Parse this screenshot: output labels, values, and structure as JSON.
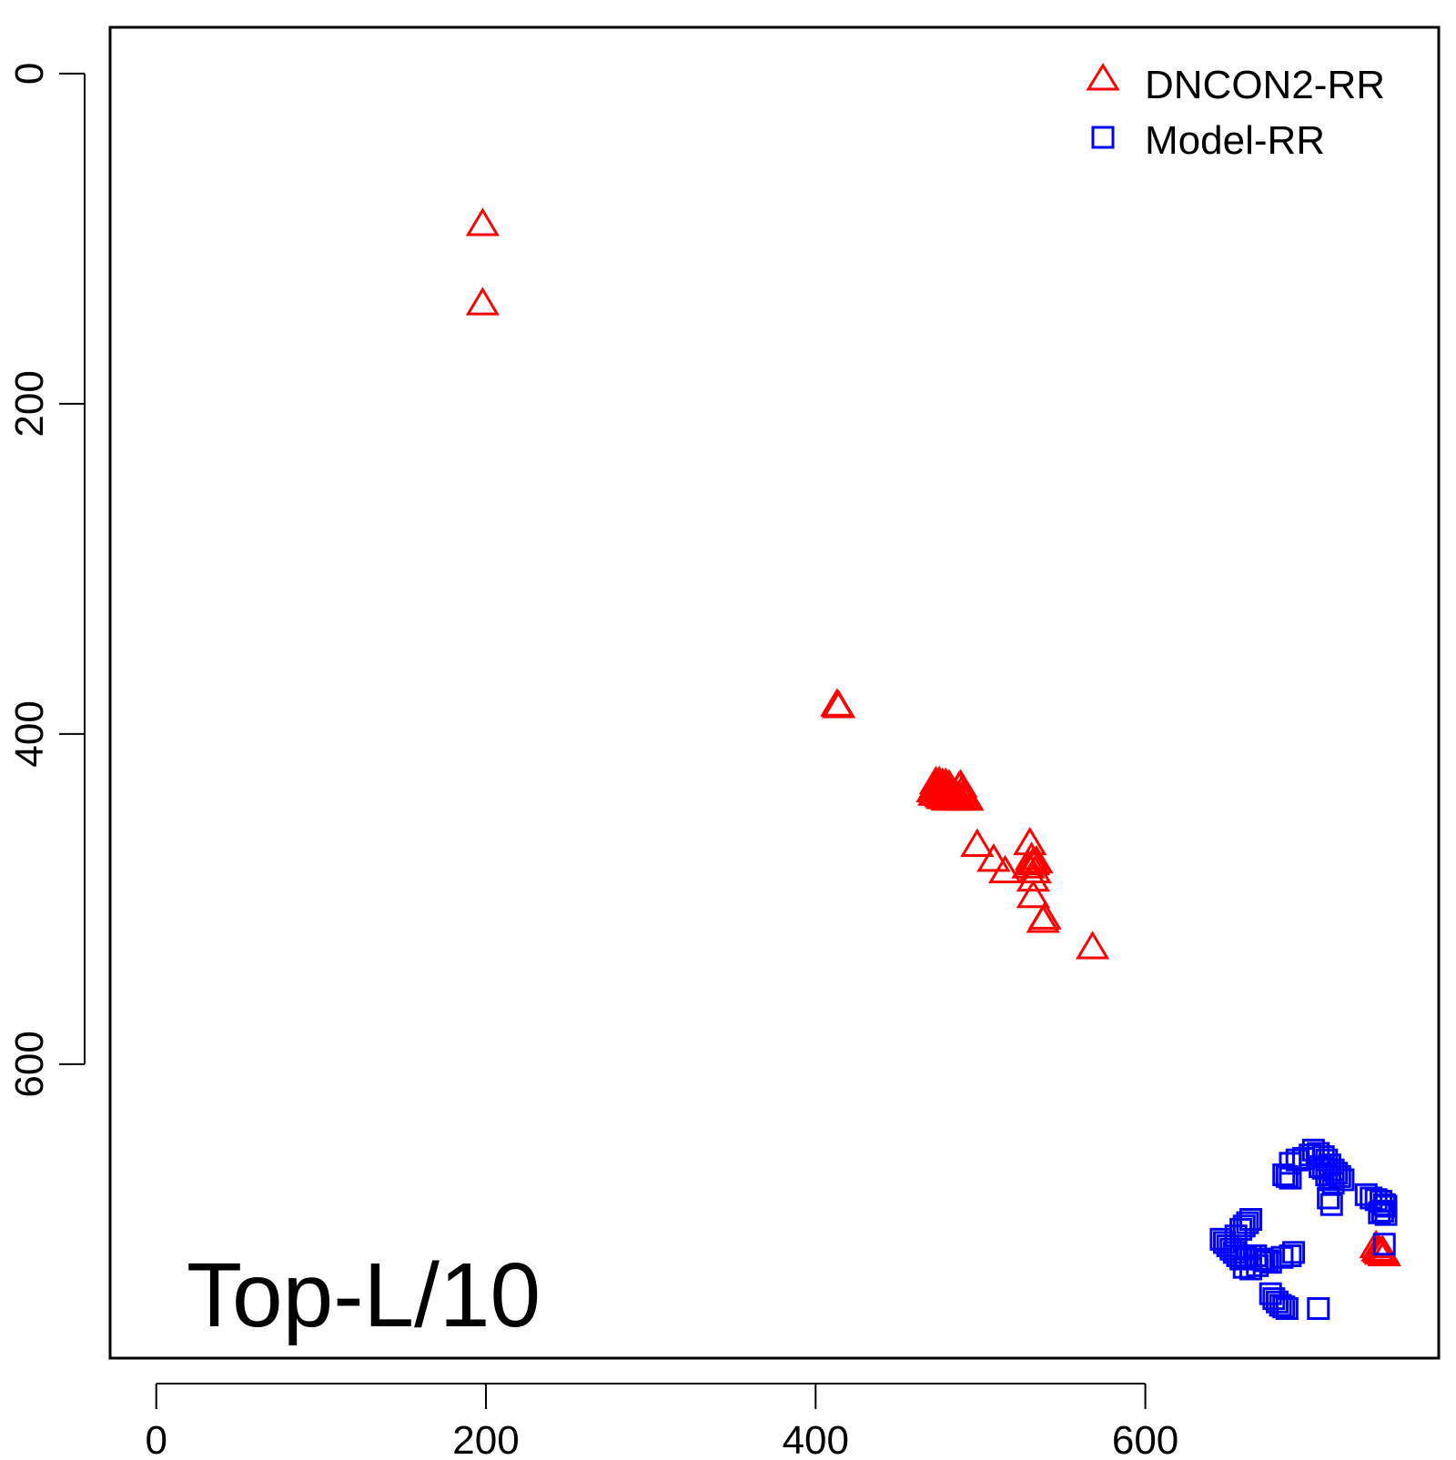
{
  "chart_data": {
    "type": "scatter",
    "title": "",
    "xlabel": "",
    "ylabel": "",
    "xlim": [
      -28,
      778
    ],
    "ylim": [
      -28,
      778
    ],
    "y_reversed": true,
    "grid": false,
    "legend_placement": "top-right",
    "annotation": "Top-L/10",
    "x_ticks": [
      0,
      200,
      400,
      600
    ],
    "y_ticks": [
      0,
      200,
      400,
      600
    ],
    "series": [
      {
        "name": "DNCON2-RR",
        "marker": "triangle",
        "color": "#ff0000",
        "points": [
          [
            198,
            91
          ],
          [
            198,
            139
          ],
          [
            413,
            382
          ],
          [
            414,
            383
          ],
          [
            472,
            433
          ],
          [
            473,
            431
          ],
          [
            474,
            432
          ],
          [
            475,
            433
          ],
          [
            476,
            434
          ],
          [
            477,
            435
          ],
          [
            478,
            433
          ],
          [
            479,
            434
          ],
          [
            480,
            435
          ],
          [
            481,
            436
          ],
          [
            482,
            433
          ],
          [
            483,
            435
          ],
          [
            484,
            436
          ],
          [
            485,
            437
          ],
          [
            486,
            438
          ],
          [
            487,
            432
          ],
          [
            488,
            431
          ],
          [
            489,
            434
          ],
          [
            490,
            436
          ],
          [
            474,
            436
          ],
          [
            476,
            437
          ],
          [
            478,
            438
          ],
          [
            480,
            439
          ],
          [
            482,
            439
          ],
          [
            484,
            439
          ],
          [
            486,
            439
          ],
          [
            488,
            439
          ],
          [
            490,
            439
          ],
          [
            492,
            439
          ],
          [
            473,
            429
          ],
          [
            475,
            429
          ],
          [
            477,
            430
          ],
          [
            479,
            430
          ],
          [
            481,
            431
          ],
          [
            471,
            434
          ],
          [
            472,
            436
          ],
          [
            477,
            438
          ],
          [
            483,
            438
          ],
          [
            498,
            467
          ],
          [
            508,
            476
          ],
          [
            515,
            483
          ],
          [
            530,
            466
          ],
          [
            531,
            475
          ],
          [
            532,
            478
          ],
          [
            529,
            480
          ],
          [
            533,
            483
          ],
          [
            534,
            477
          ],
          [
            532,
            488
          ],
          [
            532,
            498
          ],
          [
            538,
            513
          ],
          [
            539,
            511
          ],
          [
            568,
            529
          ],
          [
            740,
            710
          ],
          [
            741,
            712
          ],
          [
            742,
            713
          ],
          [
            743,
            714
          ],
          [
            744,
            713
          ],
          [
            745,
            715
          ]
        ]
      },
      {
        "name": "Model-RR",
        "marker": "square",
        "color": "#0000ff",
        "points": [
          [
            688,
            660
          ],
          [
            692,
            658
          ],
          [
            696,
            657
          ],
          [
            700,
            655
          ],
          [
            702,
            652
          ],
          [
            705,
            654
          ],
          [
            708,
            656
          ],
          [
            710,
            658
          ],
          [
            712,
            661
          ],
          [
            714,
            664
          ],
          [
            716,
            666
          ],
          [
            718,
            668
          ],
          [
            720,
            670
          ],
          [
            708,
            663
          ],
          [
            710,
            667
          ],
          [
            712,
            670
          ],
          [
            714,
            672
          ],
          [
            711,
            681
          ],
          [
            713,
            685
          ],
          [
            684,
            667
          ],
          [
            686,
            668
          ],
          [
            688,
            669
          ],
          [
            706,
            662
          ],
          [
            734,
            679
          ],
          [
            737,
            681
          ],
          [
            740,
            682
          ],
          [
            743,
            683
          ],
          [
            745,
            685
          ],
          [
            746,
            686
          ],
          [
            744,
            689
          ],
          [
            742,
            690
          ],
          [
            746,
            691
          ],
          [
            745,
            709
          ],
          [
            655,
            704
          ],
          [
            658,
            700
          ],
          [
            660,
            698
          ],
          [
            662,
            696
          ],
          [
            664,
            694
          ],
          [
            646,
            706
          ],
          [
            648,
            708
          ],
          [
            650,
            710
          ],
          [
            652,
            712
          ],
          [
            654,
            714
          ],
          [
            656,
            716
          ],
          [
            658,
            718
          ],
          [
            661,
            717
          ],
          [
            664,
            716
          ],
          [
            667,
            716
          ],
          [
            670,
            718
          ],
          [
            672,
            719
          ],
          [
            674,
            719
          ],
          [
            676,
            720
          ],
          [
            668,
            722
          ],
          [
            664,
            724
          ],
          [
            660,
            723
          ],
          [
            683,
            717
          ],
          [
            688,
            716
          ],
          [
            690,
            714
          ],
          [
            676,
            739
          ],
          [
            678,
            742
          ],
          [
            680,
            744
          ],
          [
            682,
            746
          ],
          [
            684,
            747
          ],
          [
            686,
            748
          ],
          [
            705,
            748
          ]
        ]
      }
    ]
  }
}
